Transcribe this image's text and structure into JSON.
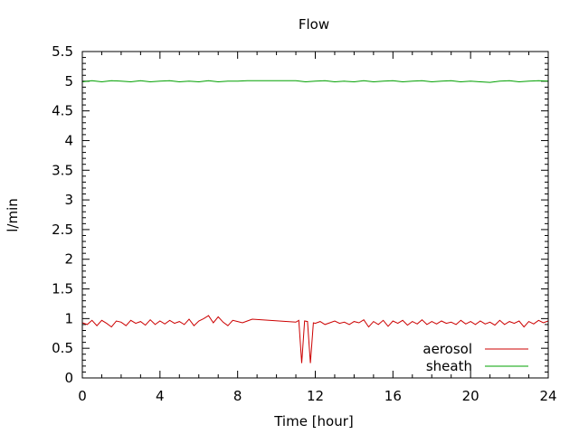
{
  "chart_data": {
    "type": "line",
    "title": "Flow",
    "xlabel": "Time [hour]",
    "ylabel": "l/min",
    "xlim": [
      0,
      24
    ],
    "ylim": [
      0,
      5.5
    ],
    "xticks": [
      0,
      4,
      8,
      12,
      16,
      20,
      24
    ],
    "yticks": [
      0,
      0.5,
      1,
      1.5,
      2,
      2.5,
      3,
      3.5,
      4,
      4.5,
      5,
      5.5
    ],
    "grid": false,
    "legend_position": "bottom-right",
    "series": [
      {
        "name": "aerosol",
        "color": "#cc0000",
        "points": [
          [
            0.0,
            0.93
          ],
          [
            0.25,
            0.9
          ],
          [
            0.5,
            0.97
          ],
          [
            0.75,
            0.88
          ],
          [
            1.0,
            0.97
          ],
          [
            1.25,
            0.92
          ],
          [
            1.5,
            0.86
          ],
          [
            1.75,
            0.96
          ],
          [
            2.0,
            0.94
          ],
          [
            2.25,
            0.88
          ],
          [
            2.5,
            0.97
          ],
          [
            2.75,
            0.92
          ],
          [
            3.0,
            0.95
          ],
          [
            3.25,
            0.89
          ],
          [
            3.5,
            0.98
          ],
          [
            3.75,
            0.9
          ],
          [
            4.0,
            0.96
          ],
          [
            4.25,
            0.91
          ],
          [
            4.5,
            0.97
          ],
          [
            4.75,
            0.92
          ],
          [
            5.0,
            0.95
          ],
          [
            5.25,
            0.9
          ],
          [
            5.5,
            0.99
          ],
          [
            5.75,
            0.88
          ],
          [
            6.0,
            0.96
          ],
          [
            6.25,
            1.0
          ],
          [
            6.5,
            1.05
          ],
          [
            6.75,
            0.93
          ],
          [
            7.0,
            1.03
          ],
          [
            7.25,
            0.94
          ],
          [
            7.5,
            0.88
          ],
          [
            7.75,
            0.97
          ],
          [
            8.0,
            0.95
          ],
          [
            8.25,
            0.93
          ],
          [
            8.5,
            0.96
          ],
          [
            8.75,
            0.99
          ],
          [
            11.0,
            0.94
          ],
          [
            11.15,
            0.97
          ],
          [
            11.3,
            0.25
          ],
          [
            11.45,
            0.96
          ],
          [
            11.6,
            0.95
          ],
          [
            11.75,
            0.25
          ],
          [
            11.9,
            0.93
          ],
          [
            12.0,
            0.92
          ],
          [
            12.25,
            0.95
          ],
          [
            12.5,
            0.9
          ],
          [
            12.75,
            0.93
          ],
          [
            13.0,
            0.96
          ],
          [
            13.25,
            0.92
          ],
          [
            13.5,
            0.94
          ],
          [
            13.75,
            0.9
          ],
          [
            14.0,
            0.95
          ],
          [
            14.25,
            0.93
          ],
          [
            14.5,
            0.98
          ],
          [
            14.75,
            0.86
          ],
          [
            15.0,
            0.95
          ],
          [
            15.25,
            0.9
          ],
          [
            15.5,
            0.97
          ],
          [
            15.75,
            0.87
          ],
          [
            16.0,
            0.96
          ],
          [
            16.25,
            0.92
          ],
          [
            16.5,
            0.97
          ],
          [
            16.75,
            0.89
          ],
          [
            17.0,
            0.95
          ],
          [
            17.25,
            0.91
          ],
          [
            17.5,
            0.98
          ],
          [
            17.75,
            0.9
          ],
          [
            18.0,
            0.95
          ],
          [
            18.25,
            0.91
          ],
          [
            18.5,
            0.96
          ],
          [
            18.75,
            0.92
          ],
          [
            19.0,
            0.94
          ],
          [
            19.25,
            0.9
          ],
          [
            19.5,
            0.97
          ],
          [
            19.75,
            0.91
          ],
          [
            20.0,
            0.95
          ],
          [
            20.25,
            0.9
          ],
          [
            20.5,
            0.96
          ],
          [
            20.75,
            0.91
          ],
          [
            21.0,
            0.94
          ],
          [
            21.25,
            0.89
          ],
          [
            21.5,
            0.97
          ],
          [
            21.75,
            0.9
          ],
          [
            22.0,
            0.95
          ],
          [
            22.25,
            0.92
          ],
          [
            22.5,
            0.96
          ],
          [
            22.75,
            0.86
          ],
          [
            23.0,
            0.95
          ],
          [
            23.25,
            0.91
          ],
          [
            23.5,
            0.97
          ],
          [
            23.75,
            0.93
          ],
          [
            24.0,
            0.96
          ]
        ]
      },
      {
        "name": "sheath",
        "color": "#00a000",
        "points": [
          [
            0.0,
            4.99
          ],
          [
            0.5,
            5.01
          ],
          [
            1.0,
            4.99
          ],
          [
            1.5,
            5.01
          ],
          [
            2.0,
            5.0
          ],
          [
            2.5,
            4.99
          ],
          [
            3.0,
            5.01
          ],
          [
            3.5,
            4.99
          ],
          [
            4.0,
            5.0
          ],
          [
            4.5,
            5.01
          ],
          [
            5.0,
            4.99
          ],
          [
            5.5,
            5.0
          ],
          [
            6.0,
            4.99
          ],
          [
            6.5,
            5.01
          ],
          [
            7.0,
            4.99
          ],
          [
            7.5,
            5.0
          ],
          [
            8.0,
            5.0
          ],
          [
            8.5,
            5.01
          ],
          [
            9.0,
            5.01
          ],
          [
            11.0,
            5.01
          ],
          [
            11.5,
            4.99
          ],
          [
            12.0,
            5.0
          ],
          [
            12.5,
            5.01
          ],
          [
            13.0,
            4.99
          ],
          [
            13.5,
            5.0
          ],
          [
            14.0,
            4.99
          ],
          [
            14.5,
            5.01
          ],
          [
            15.0,
            4.99
          ],
          [
            15.5,
            5.0
          ],
          [
            16.0,
            5.01
          ],
          [
            16.5,
            4.99
          ],
          [
            17.0,
            5.0
          ],
          [
            17.5,
            5.01
          ],
          [
            18.0,
            4.99
          ],
          [
            18.5,
            5.0
          ],
          [
            19.0,
            5.01
          ],
          [
            19.5,
            4.99
          ],
          [
            20.0,
            5.0
          ],
          [
            20.5,
            4.99
          ],
          [
            21.0,
            4.98
          ],
          [
            21.5,
            5.0
          ],
          [
            22.0,
            5.01
          ],
          [
            22.5,
            4.99
          ],
          [
            23.0,
            5.0
          ],
          [
            23.5,
            5.01
          ],
          [
            24.0,
            5.0
          ]
        ]
      }
    ]
  }
}
